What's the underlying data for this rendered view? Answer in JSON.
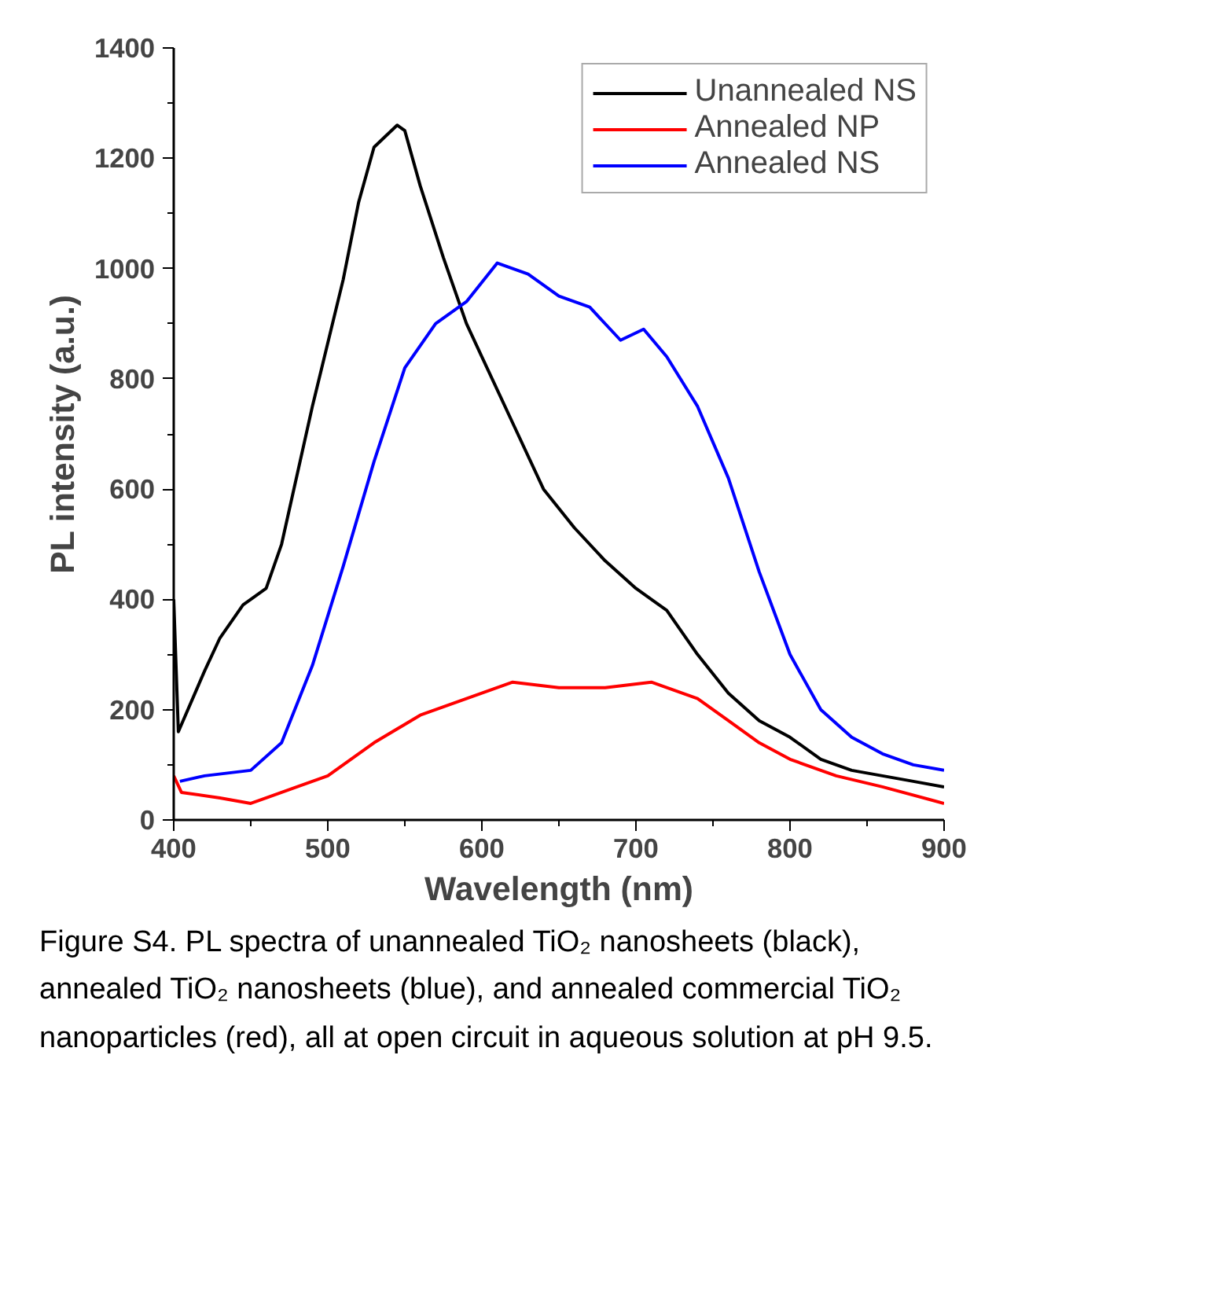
{
  "chart_data": {
    "type": "line",
    "xlabel": "Wavelength (nm)",
    "ylabel": "PL intensity (a.u.)",
    "xlim": [
      400,
      900
    ],
    "xticks": [
      400,
      500,
      600,
      700,
      800,
      900
    ],
    "ylim": [
      0,
      1400
    ],
    "yticks": [
      0,
      200,
      400,
      600,
      800,
      1000,
      1200,
      1400
    ],
    "legend": "top right",
    "grid": false,
    "series": [
      {
        "name": "Unannealed NS",
        "color": "#000000",
        "x": [
          400,
          403,
          420,
          430,
          445,
          460,
          470,
          490,
          510,
          520,
          530,
          545,
          550,
          560,
          575,
          590,
          600,
          620,
          640,
          660,
          680,
          700,
          720,
          740,
          760,
          780,
          800,
          820,
          840,
          860,
          880,
          900
        ],
        "values": [
          400,
          160,
          270,
          330,
          390,
          420,
          500,
          750,
          980,
          1120,
          1220,
          1260,
          1250,
          1150,
          1020,
          900,
          840,
          720,
          600,
          530,
          470,
          420,
          380,
          300,
          230,
          180,
          150,
          110,
          90,
          80,
          70,
          60
        ]
      },
      {
        "name": "Annealed NP",
        "color": "#ff0000",
        "x": [
          400,
          405,
          430,
          450,
          480,
          500,
          530,
          560,
          590,
          620,
          650,
          680,
          710,
          740,
          760,
          780,
          800,
          830,
          860,
          900
        ],
        "values": [
          80,
          50,
          40,
          30,
          60,
          80,
          140,
          190,
          220,
          250,
          240,
          240,
          250,
          220,
          180,
          140,
          110,
          80,
          60,
          30
        ]
      },
      {
        "name": "Annealed NS",
        "color": "#0000ff",
        "x": [
          404,
          420,
          450,
          470,
          490,
          510,
          530,
          550,
          570,
          590,
          610,
          630,
          650,
          670,
          690,
          705,
          720,
          740,
          760,
          780,
          800,
          820,
          840,
          860,
          880,
          900
        ],
        "values": [
          70,
          80,
          90,
          140,
          280,
          460,
          650,
          820,
          900,
          940,
          1010,
          990,
          950,
          930,
          870,
          890,
          840,
          750,
          620,
          450,
          300,
          200,
          150,
          120,
          100,
          90
        ]
      }
    ],
    "annotations": [
      "Figure S4. PL spectra of unannealed TiO₂ nanosheets (black), annealed TiO₂ nanosheets (blue), and annealed commercial TiO₂ nanoparticles (red), all at open circuit in aqueous solution at pH 9.5."
    ]
  }
}
